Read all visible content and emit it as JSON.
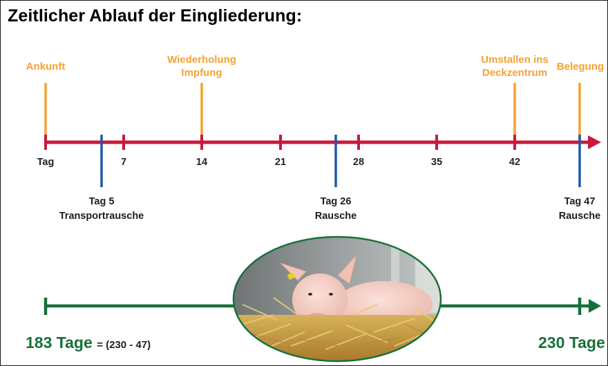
{
  "title": "Zeitlicher Ablauf der Eingliederung:",
  "timeline": {
    "start_label": "Tag",
    "ticks": [
      "7",
      "14",
      "21",
      "28",
      "35",
      "42"
    ],
    "events_orange": {
      "ankunft": "Ankunft",
      "impfung_line1": "Wiederholung",
      "impfung_line2": "Impfung",
      "umstallen_line1": "Umstallen ins",
      "umstallen_line2": "Deckzentrum",
      "belegung": "Belegung"
    },
    "events_blue": {
      "tag5_line1": "Tag 5",
      "tag5_line2": "Transportrausche",
      "tag26_line1": "Tag 26",
      "tag26_line2": "Rausche",
      "tag47_line1": "Tag 47",
      "tag47_line2": "Rausche"
    }
  },
  "bottom": {
    "left_days": "183 Tage",
    "left_formula": "= (230 - 47)",
    "right_days": "230 Tage"
  },
  "colors": {
    "timeline_red": "#c8193c",
    "orange": "#f4a233",
    "blue": "#1f5aa6",
    "green": "#17703a"
  },
  "image_description_icon": "pig-photo"
}
